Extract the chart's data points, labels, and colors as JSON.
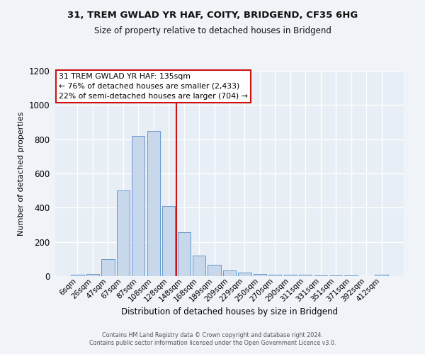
{
  "title_line1": "31, TREM GWLAD YR HAF, COITY, BRIDGEND, CF35 6HG",
  "title_line2": "Size of property relative to detached houses in Bridgend",
  "xlabel": "Distribution of detached houses by size in Bridgend",
  "ylabel": "Number of detached properties",
  "bar_labels": [
    "6sqm",
    "26sqm",
    "47sqm",
    "67sqm",
    "87sqm",
    "108sqm",
    "128sqm",
    "148sqm",
    "168sqm",
    "189sqm",
    "209sqm",
    "229sqm",
    "250sqm",
    "270sqm",
    "290sqm",
    "311sqm",
    "331sqm",
    "351sqm",
    "371sqm",
    "392sqm",
    "412sqm"
  ],
  "bar_values": [
    8,
    12,
    100,
    500,
    820,
    850,
    410,
    255,
    120,
    65,
    35,
    22,
    12,
    10,
    7,
    7,
    5,
    5,
    4,
    2,
    8
  ],
  "bar_color": "#c8d8ec",
  "bar_edge_color": "#6699cc",
  "fig_color": "#f0f4f8",
  "bg_color": "#e8eef5",
  "grid_color": "#ffffff",
  "vline_color": "#cc1111",
  "vline_pos": 6.5,
  "annotation_line1": "31 TREM GWLAD YR HAF: 135sqm",
  "annotation_line2": "← 76% of detached houses are smaller (2,433)",
  "annotation_line3": "22% of semi-detached houses are larger (704) →",
  "ann_facecolor": "#ffffff",
  "ann_edgecolor": "#cc1111",
  "footer1": "Contains HM Land Registry data © Crown copyright and database right 2024.",
  "footer2": "Contains public sector information licensed under the Open Government Licence v3.0.",
  "ylim": [
    0,
    1200
  ],
  "yticks": [
    0,
    200,
    400,
    600,
    800,
    1000,
    1200
  ]
}
